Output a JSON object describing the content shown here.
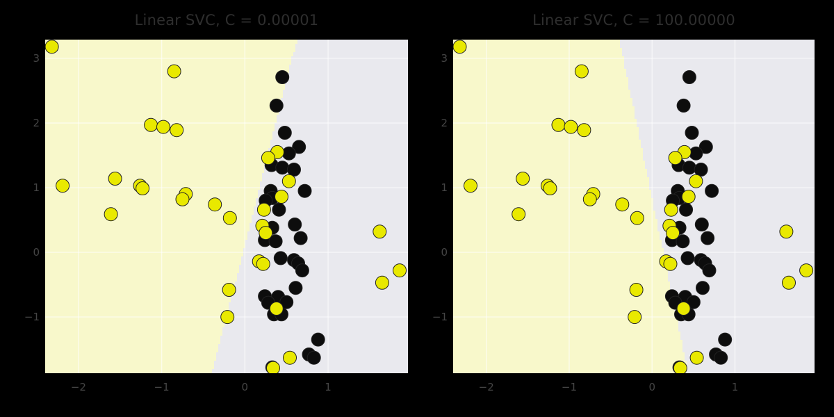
{
  "figure": {
    "background": "#000000",
    "plot_bg_class1_side": "#e9e9ee",
    "plot_bg_class0_side": "#f8f8cb",
    "grid_color": "rgba(255,255,255,0.6)",
    "title_color": "#2e2e2e",
    "tick_color": "#454545"
  },
  "chart_data": [
    {
      "type": "scatter",
      "title": "Linear SVC, C = 0.00001",
      "xlim": [
        -2.4,
        1.96
      ],
      "ylim": [
        -1.87,
        3.29
      ],
      "grid": true,
      "legend": "none",
      "xticks": [
        {
          "v": -2,
          "label": "−2"
        },
        {
          "v": -1,
          "label": "−1"
        },
        {
          "v": 0,
          "label": "0"
        },
        {
          "v": 1,
          "label": "1"
        }
      ],
      "yticks": [
        {
          "v": -1,
          "label": "−1"
        },
        {
          "v": 0,
          "label": "0"
        },
        {
          "v": 1,
          "label": "1"
        },
        {
          "v": 2,
          "label": "2"
        },
        {
          "v": 3,
          "label": "3"
        }
      ],
      "decision_boundary": {
        "x_at_y_top": 0.62,
        "x_at_y_bottom": -0.4
      }
    },
    {
      "type": "scatter",
      "title": "Linear SVC, C = 100.00000",
      "xlim": [
        -2.4,
        1.96
      ],
      "ylim": [
        -1.87,
        3.29
      ],
      "grid": true,
      "legend": "none",
      "xticks": [
        {
          "v": -2,
          "label": "−2"
        },
        {
          "v": -1,
          "label": "−1"
        },
        {
          "v": 0,
          "label": "0"
        },
        {
          "v": 1,
          "label": "1"
        }
      ],
      "yticks": [
        {
          "v": -1,
          "label": "−1"
        },
        {
          "v": 0,
          "label": "0"
        },
        {
          "v": 1,
          "label": "1"
        },
        {
          "v": 2,
          "label": "2"
        },
        {
          "v": 3,
          "label": "3"
        }
      ],
      "decision_boundary": {
        "x_at_y_top": -0.39,
        "x_at_y_bottom": 0.44
      }
    }
  ],
  "points": {
    "marker_radius_px": 9.5,
    "marker_edge_color": "#222222",
    "class0_color": "#e9e900",
    "class1_color": "#0d0d0d",
    "class0": [
      [
        -2.32,
        3.18
      ],
      [
        -0.85,
        2.8
      ],
      [
        -1.13,
        1.97
      ],
      [
        -0.98,
        1.94
      ],
      [
        -0.82,
        1.89
      ],
      [
        -1.56,
        1.14
      ],
      [
        -2.19,
        1.03
      ],
      [
        -1.26,
        1.03
      ],
      [
        -1.23,
        0.99
      ],
      [
        -0.71,
        0.9
      ],
      [
        -0.75,
        0.82
      ],
      [
        -0.36,
        0.74
      ],
      [
        -1.61,
        0.59
      ],
      [
        -0.18,
        0.53
      ],
      [
        0.39,
        1.55
      ],
      [
        0.28,
        1.46
      ],
      [
        0.53,
        1.1
      ],
      [
        0.44,
        0.86
      ],
      [
        0.23,
        0.66
      ],
      [
        0.21,
        0.41
      ],
      [
        0.25,
        0.3
      ],
      [
        1.62,
        0.32
      ],
      [
        0.17,
        -0.14
      ],
      [
        0.22,
        -0.18
      ],
      [
        -0.19,
        -0.58
      ],
      [
        0.38,
        -0.87
      ],
      [
        -0.21,
        -1.0
      ],
      [
        1.65,
        -0.47
      ],
      [
        1.86,
        -0.28
      ],
      [
        0.54,
        -1.63
      ],
      [
        0.34,
        -1.79
      ]
    ],
    "class1": [
      [
        0.45,
        2.71
      ],
      [
        0.38,
        2.27
      ],
      [
        0.48,
        1.85
      ],
      [
        0.65,
        1.63
      ],
      [
        0.53,
        1.53
      ],
      [
        0.32,
        1.35
      ],
      [
        0.45,
        1.31
      ],
      [
        0.59,
        1.28
      ],
      [
        0.72,
        0.95
      ],
      [
        0.31,
        0.95
      ],
      [
        0.33,
        0.84
      ],
      [
        0.25,
        0.8
      ],
      [
        0.41,
        0.66
      ],
      [
        0.33,
        0.38
      ],
      [
        0.6,
        0.43
      ],
      [
        0.67,
        0.22
      ],
      [
        0.24,
        0.19
      ],
      [
        0.37,
        0.17
      ],
      [
        0.43,
        -0.09
      ],
      [
        0.59,
        -0.12
      ],
      [
        0.64,
        -0.17
      ],
      [
        0.69,
        -0.28
      ],
      [
        0.61,
        -0.55
      ],
      [
        0.24,
        -0.68
      ],
      [
        0.4,
        -0.69
      ],
      [
        0.28,
        -0.78
      ],
      [
        0.5,
        -0.77
      ],
      [
        0.35,
        -0.96
      ],
      [
        0.44,
        -0.96
      ],
      [
        0.88,
        -1.35
      ],
      [
        0.77,
        -1.58
      ],
      [
        0.83,
        -1.63
      ],
      [
        0.33,
        -1.78
      ]
    ]
  }
}
